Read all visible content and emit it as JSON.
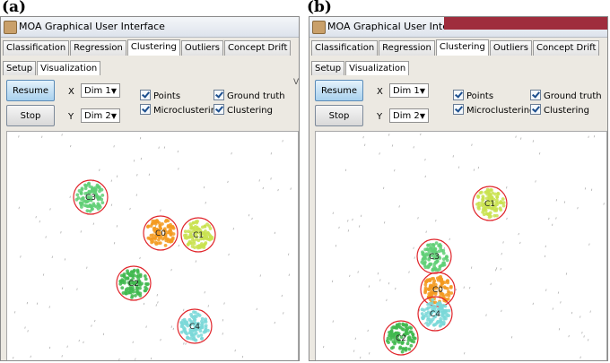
{
  "panels": [
    {
      "label": "(a)",
      "window_title": "MOA Graphical User Interface",
      "tabs": [
        "Classification",
        "Regression",
        "Clustering",
        "Outliers",
        "Concept Drift"
      ],
      "active_tab": "Clustering",
      "subtabs": [
        "Setup",
        "Visualization"
      ],
      "active_subtab": "Visualization",
      "resume_label": "Resume",
      "stop_label": "Stop",
      "x_label": "X",
      "y_label": "Y",
      "x_value": "Dim 1",
      "y_value": "Dim 2",
      "checks": [
        "Points",
        "Microclustering",
        "Ground truth",
        "Clustering"
      ],
      "extra": "Vi",
      "clusters": [
        {
          "label": "C3",
          "color": "#5fcf76",
          "x": 93,
          "y": 73
        },
        {
          "label": "C0",
          "color": "#f39a1e",
          "x": 171,
          "y": 113
        },
        {
          "label": "C1",
          "color": "#c9e24f",
          "x": 213,
          "y": 115
        },
        {
          "label": "C2",
          "color": "#3fb84d",
          "x": 141,
          "y": 169
        },
        {
          "label": "C4",
          "color": "#7ad8d8",
          "x": 209,
          "y": 217
        }
      ]
    },
    {
      "label": "(b)",
      "window_title": "MOA Graphical User Interface",
      "tabs": [
        "Classification",
        "Regression",
        "Clustering",
        "Outliers",
        "Concept Drift"
      ],
      "active_tab": "Clustering",
      "subtabs": [
        "Setup",
        "Visualization"
      ],
      "active_subtab": "Visualization",
      "resume_label": "Resume",
      "stop_label": "Stop",
      "x_label": "X",
      "y_label": "Y",
      "x_value": "Dim 1",
      "y_value": "Dim 2",
      "checks": [
        "Points",
        "Microclustering",
        "Ground truth",
        "Clustering"
      ],
      "extra": "",
      "clusters": [
        {
          "label": "C1",
          "color": "#c9e24f",
          "x": 194,
          "y": 80
        },
        {
          "label": "C3",
          "color": "#5fcf76",
          "x": 132,
          "y": 139
        },
        {
          "label": "C0",
          "color": "#f39a1e",
          "x": 136,
          "y": 176
        },
        {
          "label": "C4",
          "color": "#7ad8d8",
          "x": 133,
          "y": 203
        },
        {
          "label": "C2",
          "color": "#3fb84d",
          "x": 95,
          "y": 230
        }
      ]
    }
  ]
}
